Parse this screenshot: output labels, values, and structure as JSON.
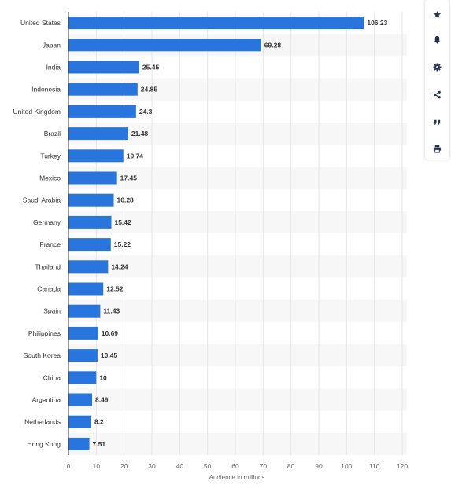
{
  "chart_data": {
    "type": "bar",
    "orientation": "horizontal",
    "categories": [
      "United States",
      "Japan",
      "India",
      "Indonesia",
      "United Kingdom",
      "Brazil",
      "Turkey",
      "Mexico",
      "Saudi Arabia",
      "Germany",
      "France",
      "Thailand",
      "Canada",
      "Spain",
      "Philippines",
      "South Korea",
      "China",
      "Argentina",
      "Netherlands",
      "Hong Kong"
    ],
    "values": [
      106.23,
      69.28,
      25.45,
      24.85,
      24.3,
      21.48,
      19.74,
      17.45,
      16.28,
      15.42,
      15.22,
      14.24,
      12.52,
      11.43,
      10.69,
      10.45,
      10,
      8.49,
      8.2,
      7.51
    ],
    "value_labels": [
      "106.23",
      "69.28",
      "25.45",
      "24.85",
      "24.3",
      "21.48",
      "19.74",
      "17.45",
      "16.28",
      "15.42",
      "15.22",
      "14.24",
      "12.52",
      "11.43",
      "10.69",
      "10.45",
      "10",
      "8.49",
      "8.2",
      "7.51"
    ],
    "xlabel": "Audience in millions",
    "ylabel": "",
    "xlim": [
      0,
      120
    ],
    "xticks": [
      "0",
      "10",
      "20",
      "30",
      "40",
      "50",
      "60",
      "70",
      "80",
      "90",
      "100",
      "110",
      "120"
    ],
    "grid": true,
    "colors": {
      "bar": "#2876dd",
      "band": "#f7f7f7",
      "grid": "#e6e6e6",
      "label": "#333333",
      "tick": "#666666"
    }
  },
  "toolbar": {
    "items": [
      {
        "icon": "star-icon",
        "label": "Favorite"
      },
      {
        "icon": "bell-icon",
        "label": "Notifications"
      },
      {
        "icon": "gear-icon",
        "label": "Settings"
      },
      {
        "icon": "share-icon",
        "label": "Share"
      },
      {
        "icon": "quote-icon",
        "label": "Cite"
      },
      {
        "icon": "print-icon",
        "label": "Print"
      }
    ],
    "icon_color": "#27334f"
  }
}
